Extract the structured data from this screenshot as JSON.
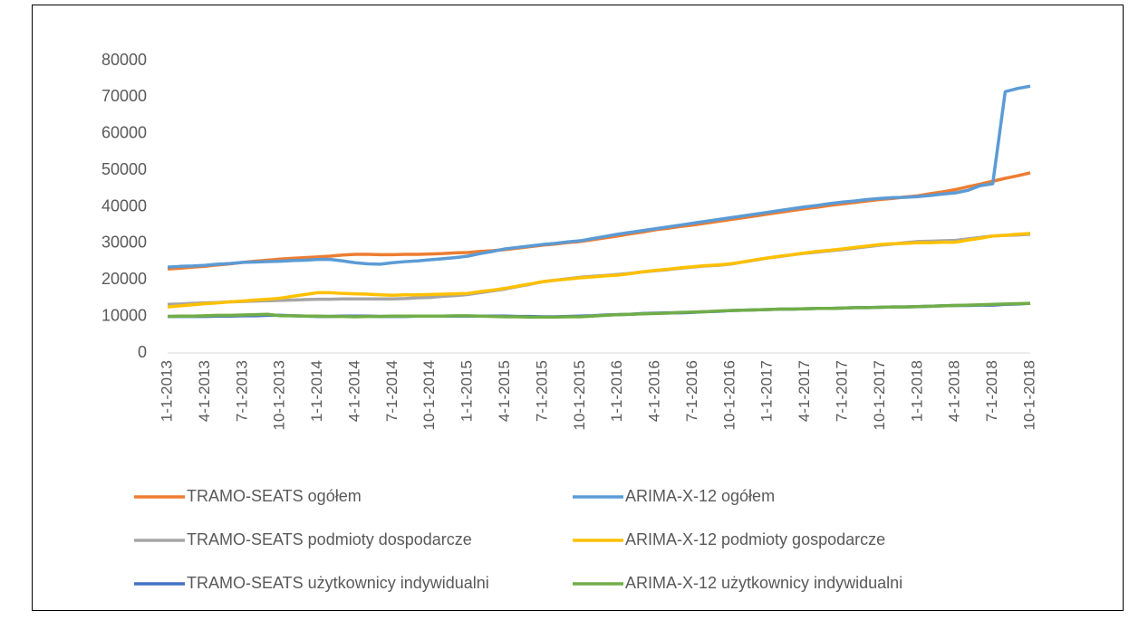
{
  "chart_data": {
    "type": "line",
    "categories": [
      "1-1-2013",
      null,
      null,
      "4-1-2013",
      null,
      null,
      "7-1-2013",
      null,
      null,
      "10-1-2013",
      null,
      null,
      "1-1-2014",
      null,
      null,
      "4-1-2014",
      null,
      null,
      "7-1-2014",
      null,
      null,
      "10-1-2014",
      null,
      null,
      "1-1-2015",
      null,
      null,
      "4-1-2015",
      null,
      null,
      "7-1-2015",
      null,
      null,
      "10-1-2015",
      null,
      null,
      "1-1-2016",
      null,
      null,
      "4-1-2016",
      null,
      null,
      "7-1-2016",
      null,
      null,
      "10-1-2016",
      null,
      null,
      "1-1-2017",
      null,
      null,
      "4-1-2017",
      null,
      null,
      "7-1-2017",
      null,
      null,
      "10-1-2017",
      null,
      null,
      "1-1-2018",
      null,
      null,
      "4-1-2018",
      null,
      null,
      "7-1-2018",
      null,
      null,
      "10-1-2018"
    ],
    "series": [
      {
        "name": "TRAMO-SEATS ogółem",
        "color": "#ed7d31",
        "values": [
          23000,
          23200,
          23500,
          23700,
          24100,
          24400,
          24800,
          25100,
          25400,
          25700,
          25900,
          26100,
          26300,
          26500,
          26800,
          27000,
          27000,
          26900,
          26900,
          27000,
          27000,
          27100,
          27200,
          27400,
          27500,
          27800,
          28000,
          28300,
          28700,
          29100,
          29500,
          29800,
          30200,
          30500,
          31000,
          31500,
          32000,
          32600,
          33100,
          33700,
          34100,
          34600,
          35000,
          35500,
          36000,
          36500,
          37000,
          37500,
          38000,
          38500,
          39000,
          39500,
          39900,
          40400,
          40800,
          41200,
          41600,
          42000,
          42300,
          42700,
          43000,
          43600,
          44100,
          44700,
          45500,
          46200,
          47000,
          47800,
          48500,
          49300
        ]
      },
      {
        "name": "ARIMA-X-12 ogółem",
        "color": "#5b9bd5",
        "values": [
          23500,
          23700,
          23800,
          24000,
          24300,
          24500,
          24800,
          24900,
          25000,
          25100,
          25300,
          25400,
          25600,
          25600,
          25200,
          24700,
          24400,
          24300,
          24700,
          25000,
          25200,
          25500,
          25800,
          26100,
          26500,
          27200,
          27800,
          28500,
          28900,
          29300,
          29700,
          30000,
          30400,
          30700,
          31300,
          31900,
          32500,
          33000,
          33500,
          34000,
          34500,
          35000,
          35500,
          36000,
          36500,
          37000,
          37500,
          38000,
          38500,
          39000,
          39500,
          40000,
          40400,
          40900,
          41300,
          41600,
          42000,
          42300,
          42500,
          42600,
          42800,
          43100,
          43500,
          43800,
          44500,
          45800,
          46300,
          71500,
          72400,
          73000
        ]
      },
      {
        "name": "TRAMO-SEATS podmioty dospodarcze",
        "color": "#a5a5a5",
        "values": [
          13300,
          13400,
          13600,
          13700,
          13800,
          14000,
          14100,
          14200,
          14300,
          14400,
          14500,
          14600,
          14700,
          14700,
          14800,
          14800,
          14800,
          14800,
          14800,
          14900,
          15100,
          15200,
          15500,
          15700,
          16000,
          16500,
          17000,
          17500,
          18200,
          18800,
          19500,
          19900,
          20300,
          20700,
          21000,
          21200,
          21500,
          21800,
          22200,
          22500,
          22800,
          23200,
          23500,
          23800,
          24000,
          24300,
          24900,
          25400,
          26000,
          26400,
          26900,
          27300,
          27600,
          28000,
          28300,
          28700,
          29100,
          29500,
          29800,
          30200,
          30500,
          30600,
          30700,
          30800,
          31200,
          31600,
          32000,
          32200,
          32300,
          32500
        ]
      },
      {
        "name": "ARIMA-X-12 podmioty gospodarcze",
        "color": "#ffc000",
        "values": [
          12600,
          12900,
          13200,
          13500,
          13700,
          14000,
          14200,
          14500,
          14700,
          15000,
          15500,
          16000,
          16500,
          16500,
          16300,
          16200,
          16100,
          15900,
          15800,
          15900,
          15900,
          16000,
          16100,
          16200,
          16300,
          16800,
          17200,
          17700,
          18300,
          18900,
          19500,
          19900,
          20200,
          20600,
          20800,
          21100,
          21300,
          21700,
          22200,
          22600,
          22900,
          23300,
          23600,
          23900,
          24100,
          24400,
          24900,
          25500,
          26000,
          26500,
          26900,
          27400,
          27800,
          28100,
          28500,
          28900,
          29300,
          29700,
          29900,
          30000,
          30200,
          30200,
          30300,
          30300,
          30900,
          31400,
          32000,
          32200,
          32500,
          32700
        ]
      },
      {
        "name": "TRAMO-SEATS użytkownicy indywidualni",
        "color": "#4472c4",
        "values": [
          10000,
          10000,
          10000,
          10000,
          10100,
          10100,
          10200,
          10200,
          10300,
          10300,
          10200,
          10100,
          10000,
          10000,
          10100,
          10100,
          10100,
          10000,
          10000,
          10000,
          10100,
          10100,
          10100,
          10100,
          10100,
          10100,
          10100,
          10100,
          10000,
          10000,
          9900,
          9900,
          10000,
          10100,
          10200,
          10400,
          10500,
          10600,
          10800,
          10900,
          11000,
          11000,
          11100,
          11300,
          11400,
          11600,
          11700,
          11800,
          11900,
          12000,
          12000,
          12100,
          12200,
          12200,
          12300,
          12400,
          12400,
          12500,
          12600,
          12600,
          12700,
          12800,
          12900,
          13000,
          13000,
          13100,
          13100,
          13300,
          13400,
          13600
        ]
      },
      {
        "name": "ARIMA-X-12 użytkownicy indywidualni",
        "color": "#70ad47",
        "values": [
          10000,
          10100,
          10100,
          10200,
          10300,
          10300,
          10400,
          10500,
          10600,
          10200,
          10200,
          10100,
          10100,
          10000,
          10000,
          9900,
          10000,
          10000,
          10100,
          10100,
          10100,
          10100,
          10100,
          10200,
          10200,
          10100,
          10000,
          9900,
          9900,
          9800,
          9800,
          9800,
          9900,
          9900,
          10100,
          10300,
          10500,
          10600,
          10700,
          10800,
          10900,
          11100,
          11200,
          11300,
          11500,
          11600,
          11700,
          11800,
          11900,
          12000,
          12000,
          12100,
          12200,
          12200,
          12300,
          12400,
          12400,
          12500,
          12600,
          12600,
          12700,
          12800,
          12900,
          13000,
          13100,
          13200,
          13300,
          13400,
          13500,
          13600
        ]
      }
    ],
    "ylim": [
      0,
      80000
    ],
    "yticks": [
      0,
      10000,
      20000,
      30000,
      40000,
      50000,
      60000,
      70000,
      80000
    ],
    "grid": false
  }
}
